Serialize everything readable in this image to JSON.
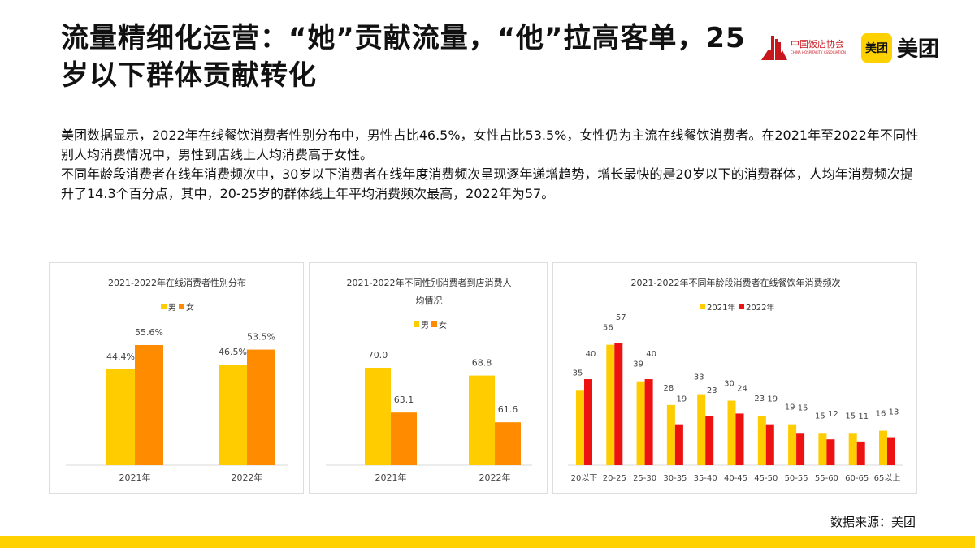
{
  "title": "流量精细化运营：“她”贡献流量，“他”拉高客单，25岁以下群体贡献转化",
  "logos": {
    "association": "中国饭店协会",
    "association_en": "CHINA HOSPITALITY ASSOCIATION",
    "meituan_icon": "美团",
    "meituan": "美团"
  },
  "body": {
    "p1": "美团数据显示，2022年在线餐饮消费者性别分布中，男性占比46.5%，女性占比53.5%，女性仍为主流在线餐饮消费者。在2021年至2022年不同性别人均消费情况中，男性到店线上人均消费高于女性。",
    "p2": "不同年龄段消费者在线年消费频次中，30岁以下消费者在线年度消费频次呈现逐年递增趋势，增长最快的是20岁以下的消费群体，人均年消费频次提升了14.3个百分点，其中，20-25岁的群体线上年平均消费频次最高，2022年为57。"
  },
  "colors": {
    "yellow": "#ffcc00",
    "orange": "#ff8c00",
    "red": "#ee1111",
    "bottom_bar": "#ffd100"
  },
  "source": "数据来源：美团",
  "chart_data": [
    {
      "type": "bar",
      "title": "2021-2022年在线消费者性别分布",
      "categories": [
        "2021年",
        "2022年"
      ],
      "series": [
        {
          "name": "男",
          "values": [
            44.4,
            46.5
          ],
          "labels": [
            "44.4%",
            "46.5%"
          ]
        },
        {
          "name": "女",
          "values": [
            55.6,
            53.5
          ],
          "labels": [
            "55.6%",
            "53.5%"
          ]
        }
      ],
      "ylim": [
        0,
        60
      ],
      "legend": "top",
      "grid": false
    },
    {
      "type": "bar",
      "title": "2021-2022年不同性别消费者到店消费人均情况",
      "title_lines": [
        "2021-2022年不同性别消费者到店消费人",
        "均情况"
      ],
      "categories": [
        "2021年",
        "2022年"
      ],
      "series": [
        {
          "name": "男",
          "values": [
            70.0,
            68.8
          ],
          "labels": [
            "70.0",
            "68.8"
          ]
        },
        {
          "name": "女",
          "values": [
            63.1,
            61.6
          ],
          "labels": [
            "63.1",
            "61.6"
          ]
        }
      ],
      "ylim": [
        55,
        72
      ],
      "legend": "top",
      "grid": false
    },
    {
      "type": "bar",
      "title": "2021-2022年不同年龄段消费者在线餐饮年消费频次",
      "categories": [
        "20以下",
        "20-25",
        "25-30",
        "30-35",
        "35-40",
        "40-45",
        "45-50",
        "50-55",
        "55-60",
        "60-65",
        "65以上"
      ],
      "series": [
        {
          "name": "2021年",
          "values": [
            35,
            56,
            39,
            28,
            33,
            30,
            23,
            19,
            15,
            15,
            16
          ]
        },
        {
          "name": "2022年",
          "values": [
            40,
            57,
            40,
            19,
            23,
            24,
            19,
            15,
            12,
            11,
            13
          ]
        }
      ],
      "ylim": [
        0,
        60
      ],
      "legend": "top",
      "grid": false
    }
  ]
}
